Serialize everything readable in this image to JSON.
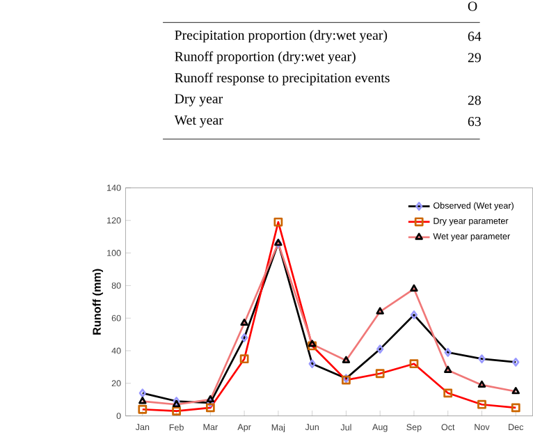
{
  "chart_data": {
    "type": "line",
    "ylabel": "Runoff (mm)",
    "categories": [
      "Jan",
      "Feb",
      "Mar",
      "Apr",
      "Maj",
      "Jun",
      "Jul",
      "Aug",
      "Sep",
      "Oct",
      "Nov",
      "Dec"
    ],
    "series": [
      {
        "name": "Observed (Wet year)",
        "color": "#000000",
        "marker": "diamond",
        "values": [
          14,
          9,
          8,
          48,
          106,
          32,
          23,
          41,
          62,
          39,
          35,
          33
        ]
      },
      {
        "name": "Dry year parameter",
        "color": "#ff0000",
        "marker": "square",
        "values": [
          4,
          3,
          5,
          35,
          119,
          43,
          22,
          26,
          32,
          14,
          7,
          5
        ]
      },
      {
        "name": "Wet year parameter",
        "color": "#f07878",
        "marker": "triangle",
        "values": [
          9,
          7,
          10,
          57,
          106,
          44,
          34,
          64,
          78,
          28,
          19,
          15
        ]
      }
    ],
    "ylim": [
      0,
      140
    ],
    "yticks": [
      0,
      20,
      40,
      60,
      80,
      100,
      120,
      140
    ],
    "legend": "top right",
    "annotations": [
      "O",
      "Precipitation proportion (dry:wet year)",
      "64",
      "Runoff proportion (dry:wet year)",
      "29",
      "Runoff response to precipitation events",
      "Dry year",
      "28",
      "Wet year",
      "63"
    ]
  }
}
